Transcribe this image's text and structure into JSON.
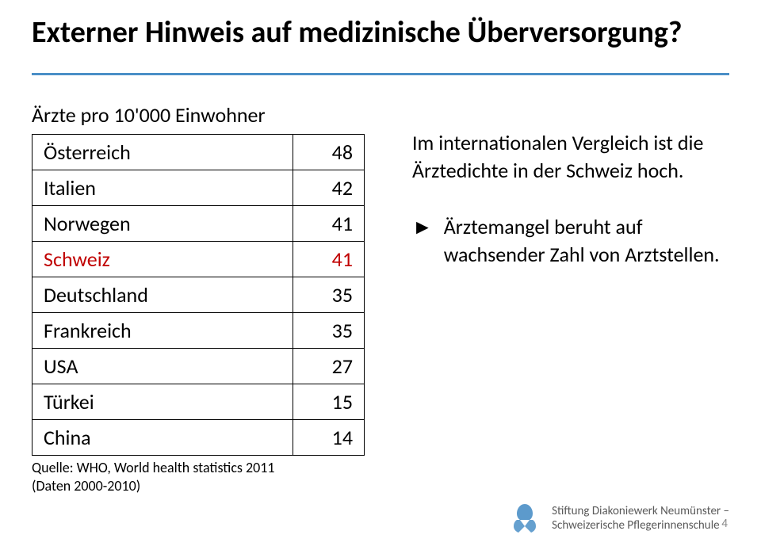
{
  "title": "Externer Hinweis auf medizinische Überversorgung?",
  "rule_color": "#4a8fc7",
  "table": {
    "caption": "Ärzte pro 10'000 Einwohner",
    "highlight_color": "#c00000",
    "rows": [
      {
        "country": "Österreich",
        "value": 48,
        "highlight": false
      },
      {
        "country": "Italien",
        "value": 42,
        "highlight": false
      },
      {
        "country": "Norwegen",
        "value": 41,
        "highlight": false
      },
      {
        "country": "Schweiz",
        "value": 41,
        "highlight": true
      },
      {
        "country": "Deutschland",
        "value": 35,
        "highlight": false
      },
      {
        "country": "Frankreich",
        "value": 35,
        "highlight": false
      },
      {
        "country": "USA",
        "value": 27,
        "highlight": false
      },
      {
        "country": "Türkei",
        "value": 15,
        "highlight": false
      },
      {
        "country": "China",
        "value": 14,
        "highlight": false
      }
    ],
    "source_line1": "Quelle: WHO, World health statistics 2011",
    "source_line2": "(Daten 2000-2010)"
  },
  "right": {
    "para1": "Im internationalen Vergleich ist die Ärztedichte in der Schweiz hoch.",
    "bullet_mark": "►",
    "bullet_text": "Ärztemangel beruht auf wachsender Zahl von Arztstellen."
  },
  "footer": {
    "line1": "Stiftung Diakoniewerk Neumünster –",
    "line2": "Schweizerische Pflegerinnenschule",
    "logo_color": "#4a8fc7"
  },
  "slide_number": "4"
}
